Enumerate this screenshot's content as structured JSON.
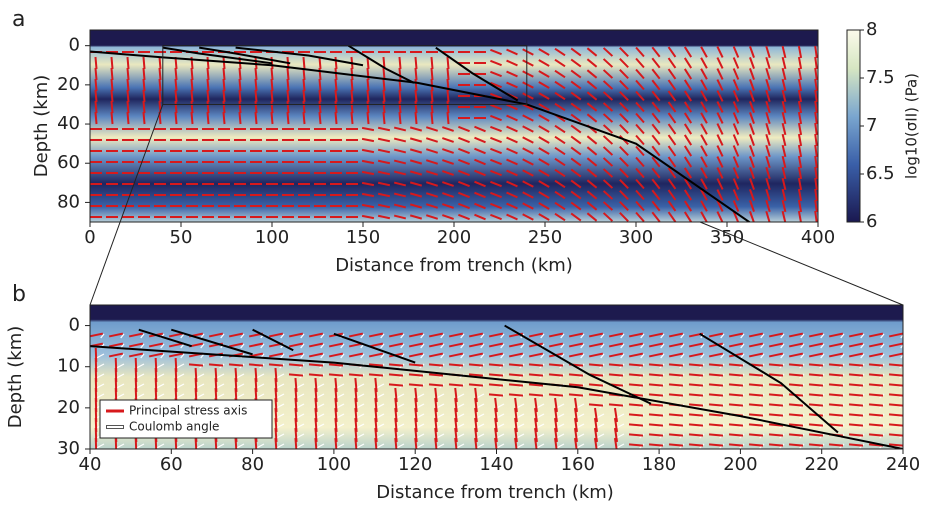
{
  "chart_data": [
    {
      "type": "field",
      "panel": "a",
      "x_label": "Distance from trench (km)",
      "y_label": "Depth (km)",
      "xlim": [
        0,
        400
      ],
      "ylim": [
        -8,
        90
      ],
      "y_inverted": true,
      "xticks": [
        0,
        50,
        100,
        150,
        200,
        250,
        300,
        350,
        400
      ],
      "yticks": [
        0,
        20,
        40,
        60,
        80
      ],
      "colorbar": {
        "label": "log10(σII) (Pa)",
        "lim": [
          6,
          8
        ],
        "ticks": [
          6,
          6.5,
          7,
          7.5,
          8
        ]
      },
      "fault_color": "#000000",
      "stress_color": "#d7191c",
      "faults": [
        {
          "x": [
            0,
            40,
            100,
            180,
            240,
            300,
            370
          ],
          "y": [
            3,
            6,
            10,
            19,
            30,
            50,
            95
          ]
        },
        {
          "x": [
            40,
            60,
            100
          ],
          "y": [
            1,
            4,
            9
          ]
        },
        {
          "x": [
            60,
            80,
            110
          ],
          "y": [
            1,
            4,
            9
          ]
        },
        {
          "x": [
            80,
            120,
            150
          ],
          "y": [
            1,
            5,
            10
          ]
        },
        {
          "x": [
            142,
            163,
            178
          ],
          "y": [
            0,
            12,
            19
          ]
        },
        {
          "x": [
            190,
            210,
            235
          ],
          "y": [
            1,
            14,
            28
          ]
        }
      ]
    },
    {
      "type": "field",
      "panel": "b",
      "x_label": "Distance from trench (km)",
      "y_label": "Depth (km)",
      "xlim": [
        40,
        240
      ],
      "ylim": [
        -5,
        30
      ],
      "y_inverted": true,
      "xticks": [
        40,
        60,
        80,
        100,
        120,
        140,
        160,
        180,
        200,
        220,
        240
      ],
      "yticks": [
        0,
        10,
        20,
        30
      ],
      "fault_color": "#000000",
      "stress_color": "#d7191c",
      "legend": [
        {
          "name": "Principal stress axis",
          "color": "#d7191c"
        },
        {
          "name": "Coulomb angle",
          "color": "#ffffff"
        }
      ],
      "faults": [
        {
          "x": [
            40,
            100,
            160,
            200,
            240
          ],
          "y": [
            5,
            9,
            15,
            22,
            30
          ]
        },
        {
          "x": [
            52,
            65
          ],
          "y": [
            1,
            5
          ]
        },
        {
          "x": [
            60,
            80
          ],
          "y": [
            1,
            7
          ]
        },
        {
          "x": [
            80,
            90
          ],
          "y": [
            1,
            6
          ]
        },
        {
          "x": [
            100,
            120
          ],
          "y": [
            2,
            9
          ]
        },
        {
          "x": [
            142,
            163,
            178
          ],
          "y": [
            0,
            12,
            19
          ]
        },
        {
          "x": [
            190,
            210,
            224
          ],
          "y": [
            2,
            14,
            26
          ]
        }
      ]
    }
  ]
}
